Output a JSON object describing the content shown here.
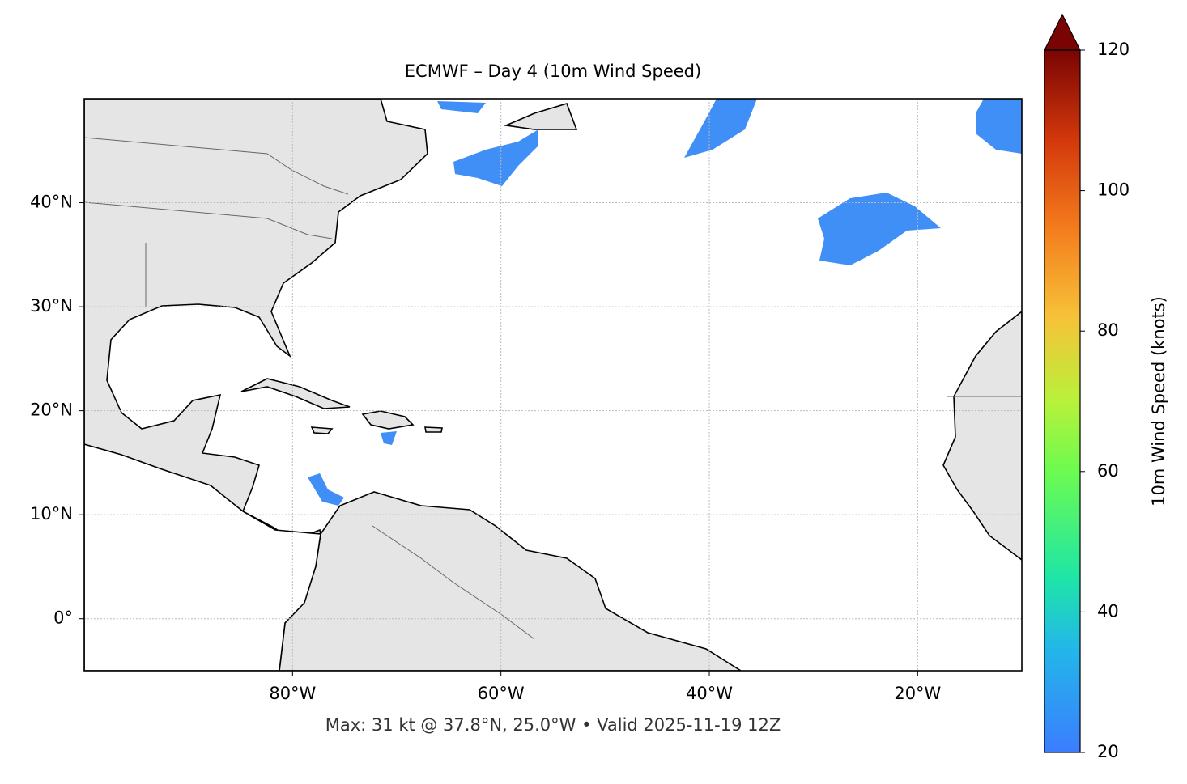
{
  "chart_data": {
    "type": "map",
    "title": "ECMWF – Day 4 (10m Wind Speed)",
    "footer": "Max: 31 kt @ 37.8°N, 25.0°W • Valid 2025-11-19 12Z",
    "xlim": [
      -100,
      -10
    ],
    "ylim": [
      -5,
      50
    ],
    "xticks": [
      {
        "value": -80,
        "label": "80°W"
      },
      {
        "value": -60,
        "label": "60°W"
      },
      {
        "value": -40,
        "label": "40°W"
      },
      {
        "value": -20,
        "label": "20°W"
      }
    ],
    "yticks": [
      {
        "value": 0,
        "label": "0°"
      },
      {
        "value": 10,
        "label": "10°N"
      },
      {
        "value": 20,
        "label": "20°N"
      },
      {
        "value": 30,
        "label": "30°N"
      },
      {
        "value": 40,
        "label": "40°N"
      }
    ],
    "grid": true,
    "colorbar": {
      "label": "10m Wind Speed (knots)",
      "lim": [
        20,
        120
      ],
      "ticks": [
        20,
        40,
        60,
        80,
        100,
        120
      ]
    }
  }
}
